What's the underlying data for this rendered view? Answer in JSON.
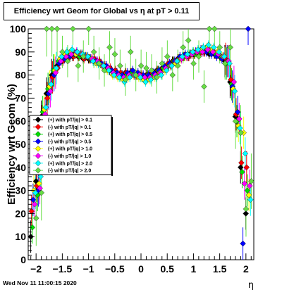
{
  "chart_data": {
    "type": "scatter",
    "title": "Efficiency wrt Geom for Global vs  η at pT > 0.11",
    "xlabel": "η",
    "ylabel": "Efficiency wrt Geom (%)",
    "xlim": [
      -2.15,
      2.15
    ],
    "ylim": [
      0,
      100
    ],
    "xticks": [
      -2,
      -1.5,
      -1,
      -0.5,
      0,
      0.5,
      1,
      1.5,
      2
    ],
    "xtick_labels": [
      "−2",
      "−1.5",
      "−1",
      "−0.5",
      "0",
      "0.5",
      "1",
      "1.5",
      "2"
    ],
    "yticks": [
      0,
      10,
      20,
      30,
      40,
      50,
      60,
      70,
      80,
      90,
      100
    ],
    "ytick_labels": [
      "0",
      "10",
      "20",
      "30",
      "40",
      "50",
      "60",
      "70",
      "80",
      "90",
      "100"
    ],
    "legend_position": "left-middle",
    "series": [
      {
        "name": "(+) with pT/|q| > 0.1",
        "color": "#000000",
        "x": [
          -2.05,
          -1.95,
          -1.85,
          -1.75,
          -1.65,
          -1.55,
          -1.45,
          -1.35,
          -1.25,
          -1.15,
          -1.05,
          -0.95,
          -0.85,
          -0.75,
          -0.65,
          -0.55,
          -0.45,
          -0.35,
          -0.25,
          -0.15,
          -0.05,
          0.05,
          0.15,
          0.25,
          0.35,
          0.45,
          0.55,
          0.65,
          0.75,
          0.85,
          0.95,
          1.05,
          1.15,
          1.25,
          1.35,
          1.45,
          1.55,
          1.65,
          1.75,
          1.85,
          1.95,
          2.05
        ],
        "y": [
          10,
          34,
          62,
          72,
          80,
          84,
          86,
          88,
          88,
          88,
          87,
          87,
          86,
          85,
          84,
          82,
          81,
          80,
          81,
          81,
          80,
          80,
          80,
          81,
          82,
          83,
          84,
          86,
          87,
          88,
          88,
          89,
          90,
          90,
          89,
          89,
          88,
          86,
          77,
          62,
          40,
          20
        ]
      },
      {
        "name": "(-) with pT/|q| > 0.1",
        "color": "#ff0000",
        "x": [
          -2.05,
          -1.95,
          -1.85,
          -1.75,
          -1.65,
          -1.55,
          -1.45,
          -1.35,
          -1.25,
          -1.15,
          -1.05,
          -0.95,
          -0.85,
          -0.75,
          -0.65,
          -0.55,
          -0.45,
          -0.35,
          -0.25,
          -0.15,
          -0.05,
          0.05,
          0.15,
          0.25,
          0.35,
          0.45,
          0.55,
          0.65,
          0.75,
          0.85,
          0.95,
          1.05,
          1.15,
          1.25,
          1.35,
          1.45,
          1.55,
          1.65,
          1.75,
          1.85,
          1.95,
          2.05
        ],
        "y": [
          21,
          32,
          60,
          70,
          79,
          83,
          86,
          87,
          88,
          88,
          87,
          87,
          87,
          86,
          84,
          83,
          82,
          81,
          81,
          81,
          80,
          80,
          80,
          81,
          82,
          83,
          85,
          86,
          87,
          88,
          88,
          89,
          89,
          90,
          90,
          89,
          88,
          87,
          78,
          63,
          42,
          40
        ]
      },
      {
        "name": "(+) with pT/|q| > 0.5",
        "color": "#00dd00",
        "x": [
          -2.05,
          -1.95,
          -1.85,
          -1.75,
          -1.65,
          -1.55,
          -1.45,
          -1.35,
          -1.25,
          -1.15,
          -1.05,
          -0.95,
          -0.85,
          -0.75,
          -0.65,
          -0.55,
          -0.45,
          -0.35,
          -0.25,
          -0.15,
          -0.05,
          0.05,
          0.15,
          0.25,
          0.35,
          0.45,
          0.55,
          0.65,
          0.75,
          0.85,
          0.95,
          1.05,
          1.15,
          1.25,
          1.35,
          1.45,
          1.55,
          1.65,
          1.75,
          1.85,
          1.95,
          2.05
        ],
        "y": [
          14,
          28,
          64,
          74,
          82,
          86,
          88,
          89,
          89,
          88,
          88,
          87,
          86,
          85,
          83,
          82,
          81,
          80,
          80,
          81,
          80,
          79,
          80,
          80,
          82,
          83,
          84,
          86,
          87,
          88,
          89,
          89,
          90,
          91,
          90,
          89,
          88,
          85,
          76,
          60,
          38,
          30
        ]
      },
      {
        "name": "(-) with pT/|q| > 0.5",
        "color": "#0000ff",
        "x": [
          -2.05,
          -1.95,
          -1.85,
          -1.75,
          -1.65,
          -1.55,
          -1.45,
          -1.35,
          -1.25,
          -1.15,
          -1.05,
          -0.95,
          -0.85,
          -0.75,
          -0.65,
          -0.55,
          -0.45,
          -0.35,
          -0.25,
          -0.15,
          -0.05,
          0.05,
          0.15,
          0.25,
          0.35,
          0.45,
          0.55,
          0.65,
          0.75,
          0.85,
          0.95,
          1.05,
          1.15,
          1.25,
          1.35,
          1.45,
          1.55,
          1.65,
          1.75,
          1.85,
          1.95,
          2.05
        ],
        "y": [
          26,
          30,
          58,
          72,
          80,
          85,
          87,
          88,
          89,
          89,
          88,
          87,
          86,
          85,
          84,
          82,
          81,
          80,
          81,
          82,
          81,
          80,
          80,
          81,
          82,
          84,
          85,
          86,
          88,
          89,
          89,
          90,
          91,
          90,
          89,
          88,
          87,
          86,
          75,
          64,
          7,
          100
        ]
      },
      {
        "name": "(+) with pT/|q| > 1.0",
        "color": "#ffff00",
        "x": [
          -2.05,
          -1.95,
          -1.85,
          -1.75,
          -1.65,
          -1.55,
          -1.45,
          -1.35,
          -1.25,
          -1.15,
          -1.05,
          -0.95,
          -0.85,
          -0.75,
          -0.65,
          -0.55,
          -0.45,
          -0.35,
          -0.25,
          -0.15,
          -0.05,
          0.05,
          0.15,
          0.25,
          0.35,
          0.45,
          0.55,
          0.65,
          0.75,
          0.85,
          0.95,
          1.05,
          1.15,
          1.25,
          1.35,
          1.45,
          1.55,
          1.65,
          1.75,
          1.85,
          1.95,
          2.05
        ],
        "y": [
          30,
          33,
          65,
          75,
          82,
          87,
          89,
          90,
          89,
          89,
          88,
          87,
          85,
          84,
          82,
          80,
          79,
          78,
          79,
          80,
          79,
          78,
          78,
          79,
          81,
          82,
          84,
          85,
          87,
          88,
          89,
          90,
          91,
          92,
          91,
          90,
          88,
          86,
          74,
          58,
          55,
          28
        ]
      },
      {
        "name": "(-) with pT/|q| > 1.0",
        "color": "#ff00ff",
        "x": [
          -2.05,
          -1.95,
          -1.85,
          -1.75,
          -1.65,
          -1.55,
          -1.45,
          -1.35,
          -1.25,
          -1.15,
          -1.05,
          -0.95,
          -0.85,
          -0.75,
          -0.65,
          -0.55,
          -0.45,
          -0.35,
          -0.25,
          -0.15,
          -0.05,
          0.05,
          0.15,
          0.25,
          0.35,
          0.45,
          0.55,
          0.65,
          0.75,
          0.85,
          0.95,
          1.05,
          1.15,
          1.25,
          1.35,
          1.45,
          1.55,
          1.65,
          1.75,
          1.85,
          1.95,
          2.05
        ],
        "y": [
          24,
          31,
          63,
          73,
          81,
          86,
          88,
          89,
          90,
          89,
          88,
          87,
          86,
          84,
          83,
          81,
          80,
          79,
          80,
          80,
          80,
          79,
          79,
          80,
          81,
          83,
          84,
          86,
          87,
          88,
          89,
          90,
          90,
          91,
          90,
          89,
          88,
          86,
          77,
          61,
          33,
          32
        ]
      },
      {
        "name": "(+) with pT/|q| > 2.0",
        "color": "#00ffff",
        "x": [
          -2.05,
          -1.95,
          -1.85,
          -1.75,
          -1.65,
          -1.55,
          -1.45,
          -1.35,
          -1.25,
          -1.15,
          -1.05,
          -0.95,
          -0.85,
          -0.75,
          -0.65,
          -0.55,
          -0.45,
          -0.35,
          -0.25,
          -0.15,
          -0.05,
          0.05,
          0.15,
          0.25,
          0.35,
          0.45,
          0.55,
          0.65,
          0.75,
          0.85,
          0.95,
          1.05,
          1.15,
          1.25,
          1.35,
          1.45,
          1.55,
          1.65,
          1.75,
          1.85,
          1.95,
          2.05
        ],
        "y": [
          29,
          36,
          66,
          76,
          83,
          88,
          90,
          91,
          90,
          89,
          88,
          86,
          85,
          84,
          82,
          80,
          79,
          77,
          79,
          80,
          79,
          77,
          78,
          79,
          80,
          82,
          84,
          86,
          88,
          89,
          90,
          91,
          92,
          93,
          92,
          90,
          88,
          85,
          73,
          57,
          46,
          26
        ]
      },
      {
        "name": "(-) with pT/|q| > 2.0",
        "color": "#66dd44",
        "x": [
          -2.05,
          -1.95,
          -1.85,
          -1.75,
          -1.65,
          -1.55,
          -1.45,
          -1.35,
          -1.25,
          -1.15,
          -1.05,
          -0.95,
          -0.85,
          -0.75,
          -0.65,
          -0.55,
          -0.45,
          -0.35,
          -0.25,
          -0.15,
          -0.05,
          0.05,
          0.15,
          0.25,
          0.35,
          0.45,
          0.55,
          0.65,
          0.75,
          0.85,
          0.95,
          1.05,
          1.15,
          1.25,
          1.35,
          1.45,
          1.55,
          1.65,
          1.75,
          1.85,
          1.95,
          2.05
        ],
        "y": [
          18,
          29,
          100,
          100,
          100,
          90,
          86,
          100,
          84,
          88,
          100,
          90,
          85,
          82,
          92,
          89,
          84,
          78,
          90,
          80,
          84,
          83,
          82,
          79,
          85,
          88,
          80,
          84,
          92,
          95,
          85,
          88,
          75,
          100,
          100,
          92,
          85,
          92,
          60,
          55,
          22,
          34
        ]
      }
    ]
  },
  "footer": {
    "date": "Wed Nov 11 11:00:15 2020"
  }
}
